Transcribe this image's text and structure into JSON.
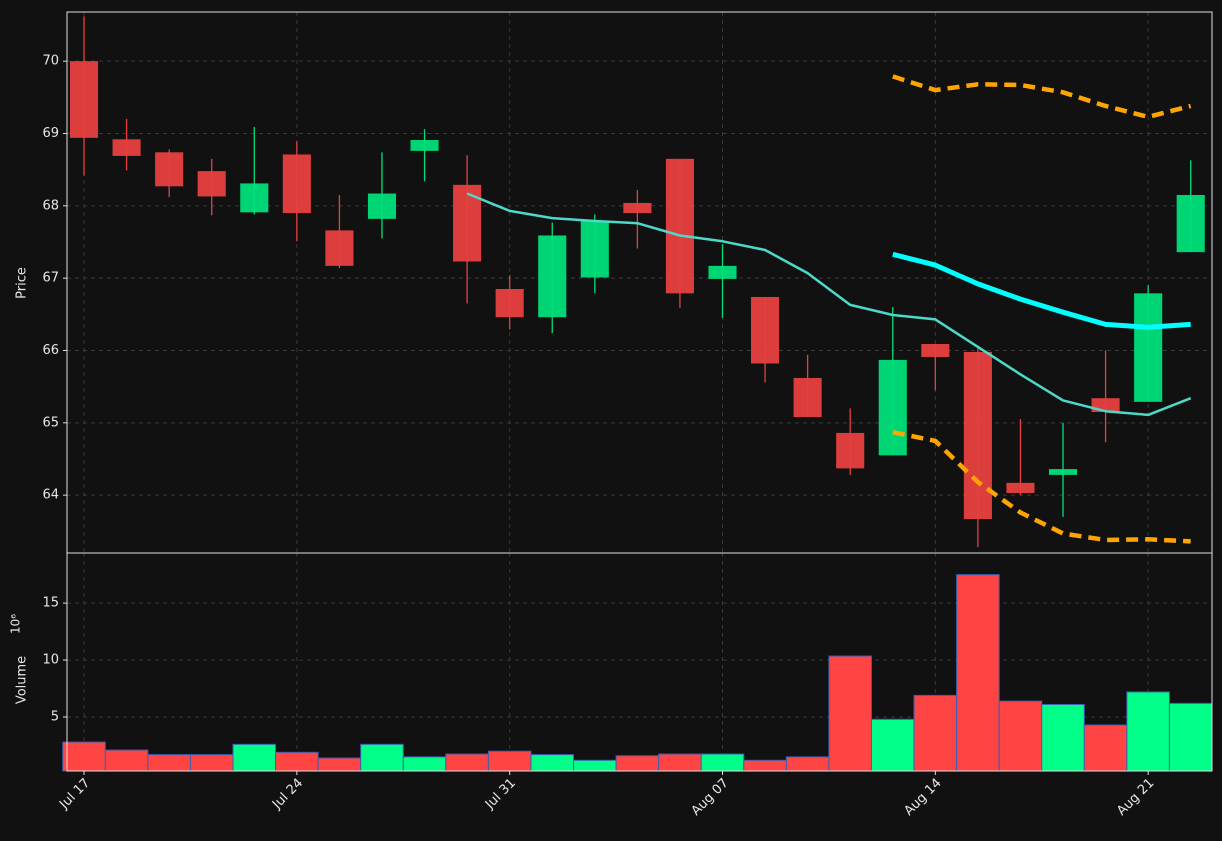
{
  "chart_data": {
    "type": "candlestick",
    "ylabel": "Price",
    "categories": [
      "Jul 17",
      null,
      null,
      null,
      null,
      "Jul 24",
      null,
      null,
      null,
      null,
      "Jul 31",
      null,
      null,
      null,
      null,
      "Aug 07",
      null,
      null,
      null,
      null,
      "Aug 14",
      null,
      null,
      null,
      null,
      "Aug 21",
      null
    ],
    "open": [
      70.0,
      68.92,
      68.74,
      68.48,
      67.91,
      68.71,
      67.66,
      67.82,
      68.76,
      68.29,
      66.85,
      66.46,
      67.01,
      68.04,
      68.65,
      66.99,
      66.74,
      65.62,
      64.86,
      64.55,
      66.09,
      65.98,
      64.17,
      64.28,
      65.34,
      65.29,
      67.36
    ],
    "high": [
      70.62,
      69.2,
      68.78,
      68.65,
      69.09,
      68.89,
      68.15,
      68.74,
      69.06,
      68.7,
      67.04,
      67.77,
      67.88,
      68.22,
      68.65,
      67.47,
      66.74,
      65.94,
      65.2,
      66.6,
      66.09,
      66.07,
      65.05,
      65.0,
      66.0,
      66.9,
      68.63
    ],
    "low": [
      68.42,
      68.49,
      68.12,
      67.87,
      67.88,
      67.51,
      67.14,
      67.55,
      68.34,
      66.65,
      66.29,
      66.24,
      66.79,
      67.41,
      66.59,
      66.45,
      65.56,
      65.08,
      64.28,
      64.55,
      65.45,
      63.28,
      64.0,
      63.7,
      64.73,
      65.29,
      67.36
    ],
    "close": [
      68.94,
      68.69,
      68.27,
      68.13,
      68.31,
      67.9,
      67.17,
      68.17,
      68.91,
      67.23,
      66.46,
      67.59,
      67.79,
      67.9,
      66.79,
      67.17,
      65.82,
      65.08,
      64.37,
      65.87,
      65.91,
      63.67,
      64.03,
      64.36,
      65.15,
      66.79,
      68.15
    ],
    "up_color": "#00e07a",
    "down_color": "#e84040",
    "ylim": [
      63.2,
      70.68
    ],
    "yticks": [
      64,
      65,
      66,
      67,
      68,
      69,
      70
    ],
    "grid": true,
    "series": [
      {
        "color": "#4dd9c8",
        "style": "solid",
        "values": [
          null,
          null,
          null,
          null,
          null,
          null,
          null,
          null,
          null,
          68.17,
          67.93,
          67.83,
          67.79,
          67.76,
          67.59,
          67.51,
          67.39,
          67.07,
          66.63,
          66.49,
          66.43,
          66.05,
          65.67,
          65.31,
          65.16,
          65.11,
          65.34
        ]
      },
      {
        "color": "#00ffff",
        "style": "bold",
        "values": [
          null,
          null,
          null,
          null,
          null,
          null,
          null,
          null,
          null,
          null,
          null,
          null,
          null,
          null,
          null,
          null,
          null,
          null,
          null,
          67.33,
          67.18,
          66.92,
          66.71,
          66.53,
          66.36,
          66.32,
          66.36
        ]
      },
      {
        "color": "#ffa500",
        "style": "dashed",
        "values": [
          null,
          null,
          null,
          null,
          null,
          null,
          null,
          null,
          null,
          null,
          null,
          null,
          null,
          null,
          null,
          null,
          null,
          null,
          null,
          69.79,
          69.6,
          69.68,
          69.67,
          69.57,
          69.38,
          69.23,
          69.38
        ]
      },
      {
        "color": "#ffa500",
        "style": "dashed",
        "values": [
          null,
          null,
          null,
          null,
          null,
          null,
          null,
          null,
          null,
          null,
          null,
          null,
          null,
          null,
          null,
          null,
          null,
          null,
          null,
          64.87,
          64.75,
          64.18,
          63.76,
          63.47,
          63.38,
          63.39,
          63.36
        ]
      }
    ],
    "volume": {
      "ylabel": "Volume",
      "scale_label": "10⁶",
      "up_color": "#00ff88",
      "down_color": "#ff4444",
      "edge_color": "#3a5fb0",
      "values": [
        2.8,
        2.1,
        1.7,
        1.7,
        2.6,
        1.9,
        1.4,
        2.6,
        1.5,
        1.75,
        2.0,
        1.7,
        1.2,
        1.6,
        1.75,
        1.75,
        1.2,
        1.5,
        10.35,
        4.8,
        6.9,
        17.5,
        6.4,
        6.1,
        4.3,
        7.2,
        6.2
      ],
      "ylim": [
        0.26,
        19.4
      ],
      "yticks": [
        5,
        10,
        15
      ]
    }
  }
}
